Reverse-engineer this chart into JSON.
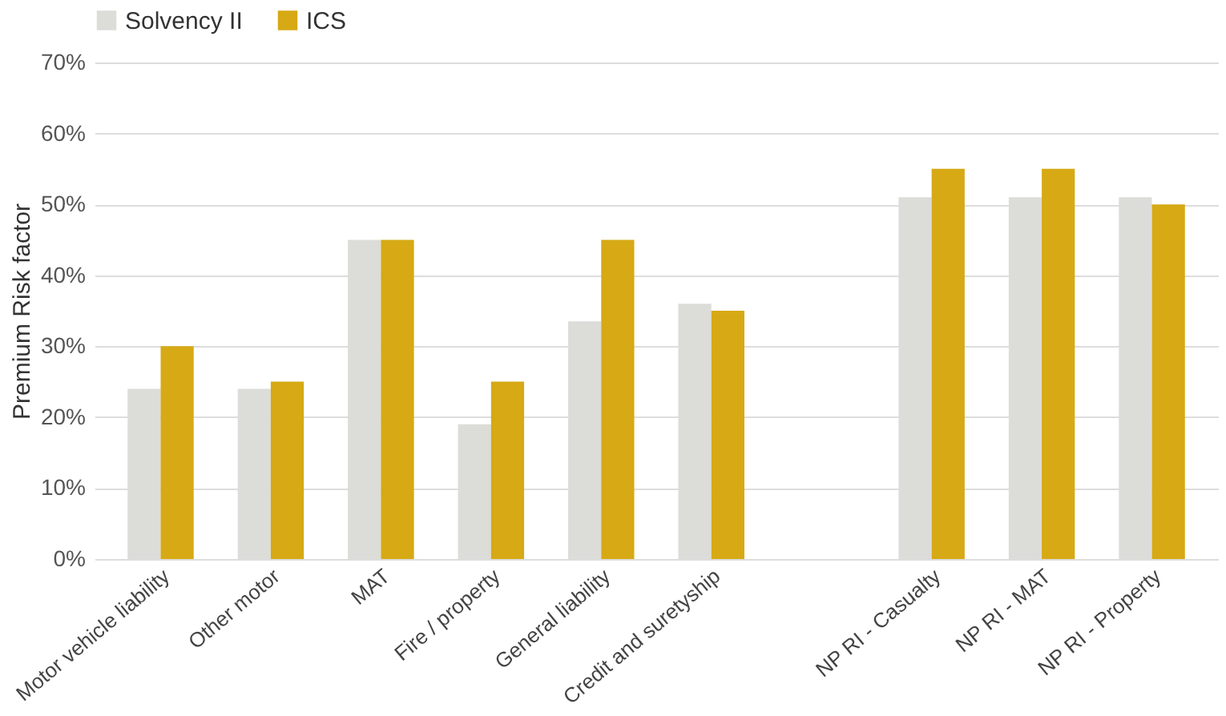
{
  "chart_data": {
    "type": "bar",
    "categories": [
      "Motor vehicle liability",
      "Other motor",
      "MAT",
      "Fire / property",
      "General liability",
      "Credit and suretyship",
      null,
      "NP RI - Casualty",
      "NP RI - MAT",
      "NP RI - Property"
    ],
    "series": [
      {
        "name": "Solvency II",
        "color": "#dcdcd8",
        "values": [
          24,
          24,
          45,
          19,
          33.5,
          36,
          null,
          51,
          51,
          51
        ]
      },
      {
        "name": "ICS",
        "color": "#d6a915",
        "values": [
          30,
          25,
          45,
          25,
          45,
          35,
          null,
          55,
          55,
          50
        ]
      }
    ],
    "ylabel": "Premium  Risk factor",
    "ylim": [
      0,
      70
    ],
    "yticks": [
      {
        "value": 0,
        "label": "0%"
      },
      {
        "value": 10,
        "label": "10%"
      },
      {
        "value": 20,
        "label": "20%"
      },
      {
        "value": 30,
        "label": "30%"
      },
      {
        "value": 40,
        "label": "40%"
      },
      {
        "value": 50,
        "label": "50%"
      },
      {
        "value": 60,
        "label": "60%"
      },
      {
        "value": 70,
        "label": "70%"
      }
    ],
    "grid": "y",
    "legend": "top"
  }
}
